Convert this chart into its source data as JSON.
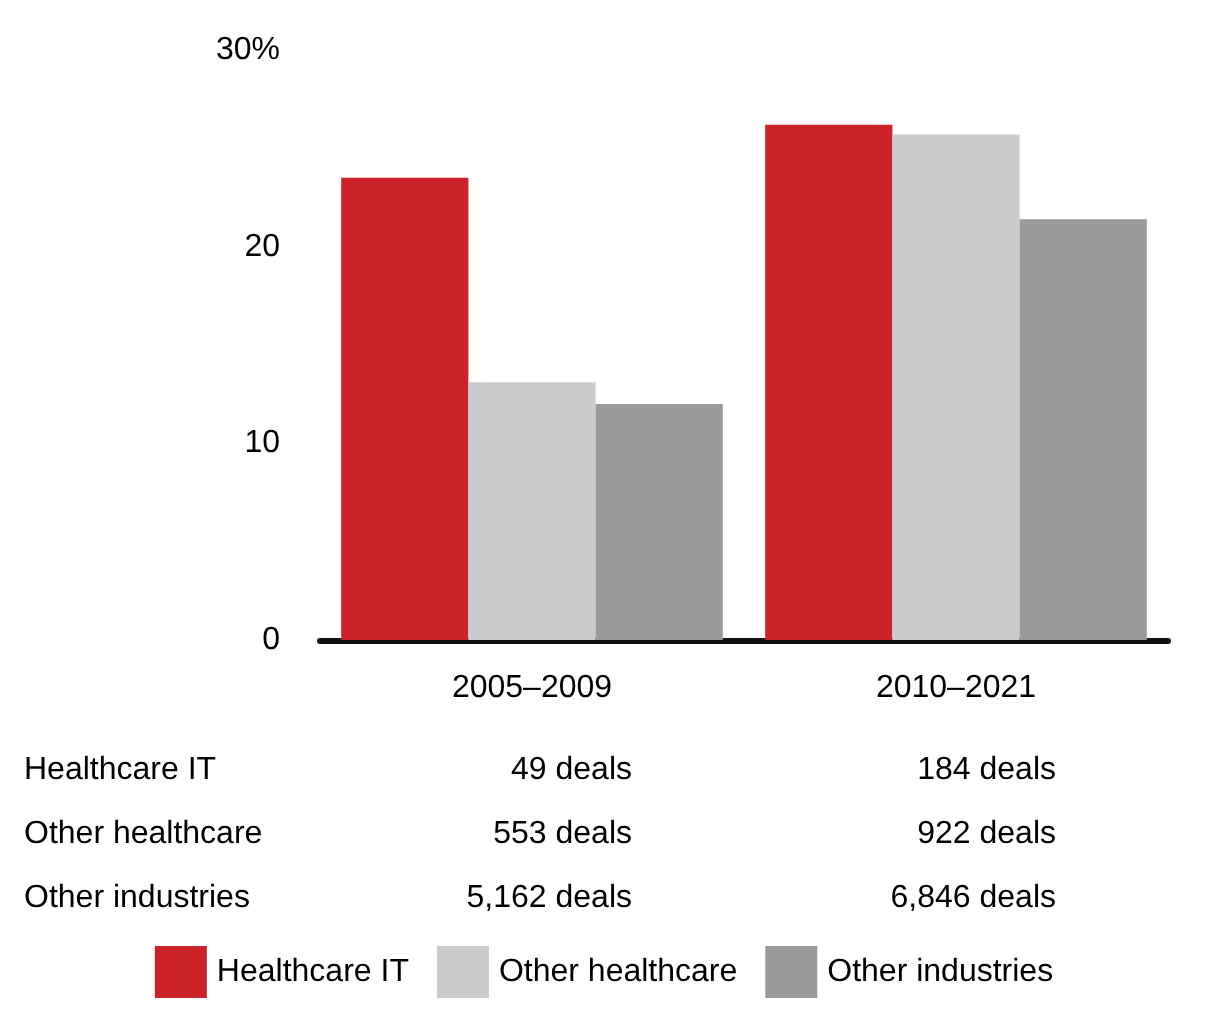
{
  "chart_data": {
    "type": "bar",
    "categories": [
      "2005–2009",
      "2010–2021"
    ],
    "series": [
      {
        "name": "Healthcare IT",
        "color": "#cc2229",
        "values": [
          23.5,
          26.2
        ]
      },
      {
        "name": "Other healthcare",
        "color": "#cbcbcb",
        "values": [
          13.1,
          25.7
        ]
      },
      {
        "name": "Other industries",
        "color": "#9a9a9a",
        "values": [
          12.0,
          21.4
        ]
      }
    ],
    "ylim": [
      0,
      30
    ],
    "yticks": [
      0,
      10,
      20,
      {
        "value": 30,
        "label": "30%"
      }
    ],
    "grid": false,
    "legend": "bottom",
    "annotations": [
      "49 deals",
      "184 deals",
      "553 deals",
      "922 deals",
      "5,162 deals",
      "6,846 deals"
    ]
  }
}
